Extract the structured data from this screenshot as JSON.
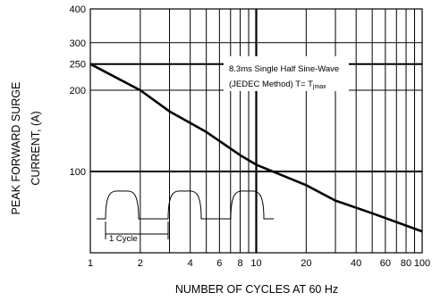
{
  "chart_data": {
    "type": "line",
    "title": "",
    "xlabel": "NUMBER OF CYCLES AT 60 Hz",
    "ylabel_lines": [
      "PEAK FORWARD SURGE",
      "CURRENT, (A)"
    ],
    "x_scale": "log",
    "y_scale": "log",
    "xlim": [
      1,
      100
    ],
    "ylim": [
      50,
      400
    ],
    "x_ticks": [
      1,
      2,
      4,
      6,
      8,
      10,
      20,
      40,
      60,
      80,
      100
    ],
    "x_tick_labels": [
      "1",
      "2",
      "4",
      "6",
      "8",
      "10",
      "20",
      "40",
      "60",
      "80",
      "100"
    ],
    "y_ticks": [
      100,
      200,
      250,
      300,
      400
    ],
    "y_tick_labels": [
      "100",
      "200",
      "250",
      "300",
      "400"
    ],
    "grid": true,
    "series": [
      {
        "x": [
          1,
          2,
          3,
          5,
          8,
          10,
          20,
          30,
          50,
          100
        ],
        "y": [
          250,
          200,
          167,
          140,
          115,
          106,
          89,
          78,
          70,
          60
        ]
      }
    ],
    "annotations": {
      "condition_line1": "8.3ms Single Half Sine-Wave",
      "condition_line2_main": "(JEDEC Method) T= T",
      "condition_line2_sub": "jmax",
      "cycle_label": "1 Cycle"
    }
  }
}
